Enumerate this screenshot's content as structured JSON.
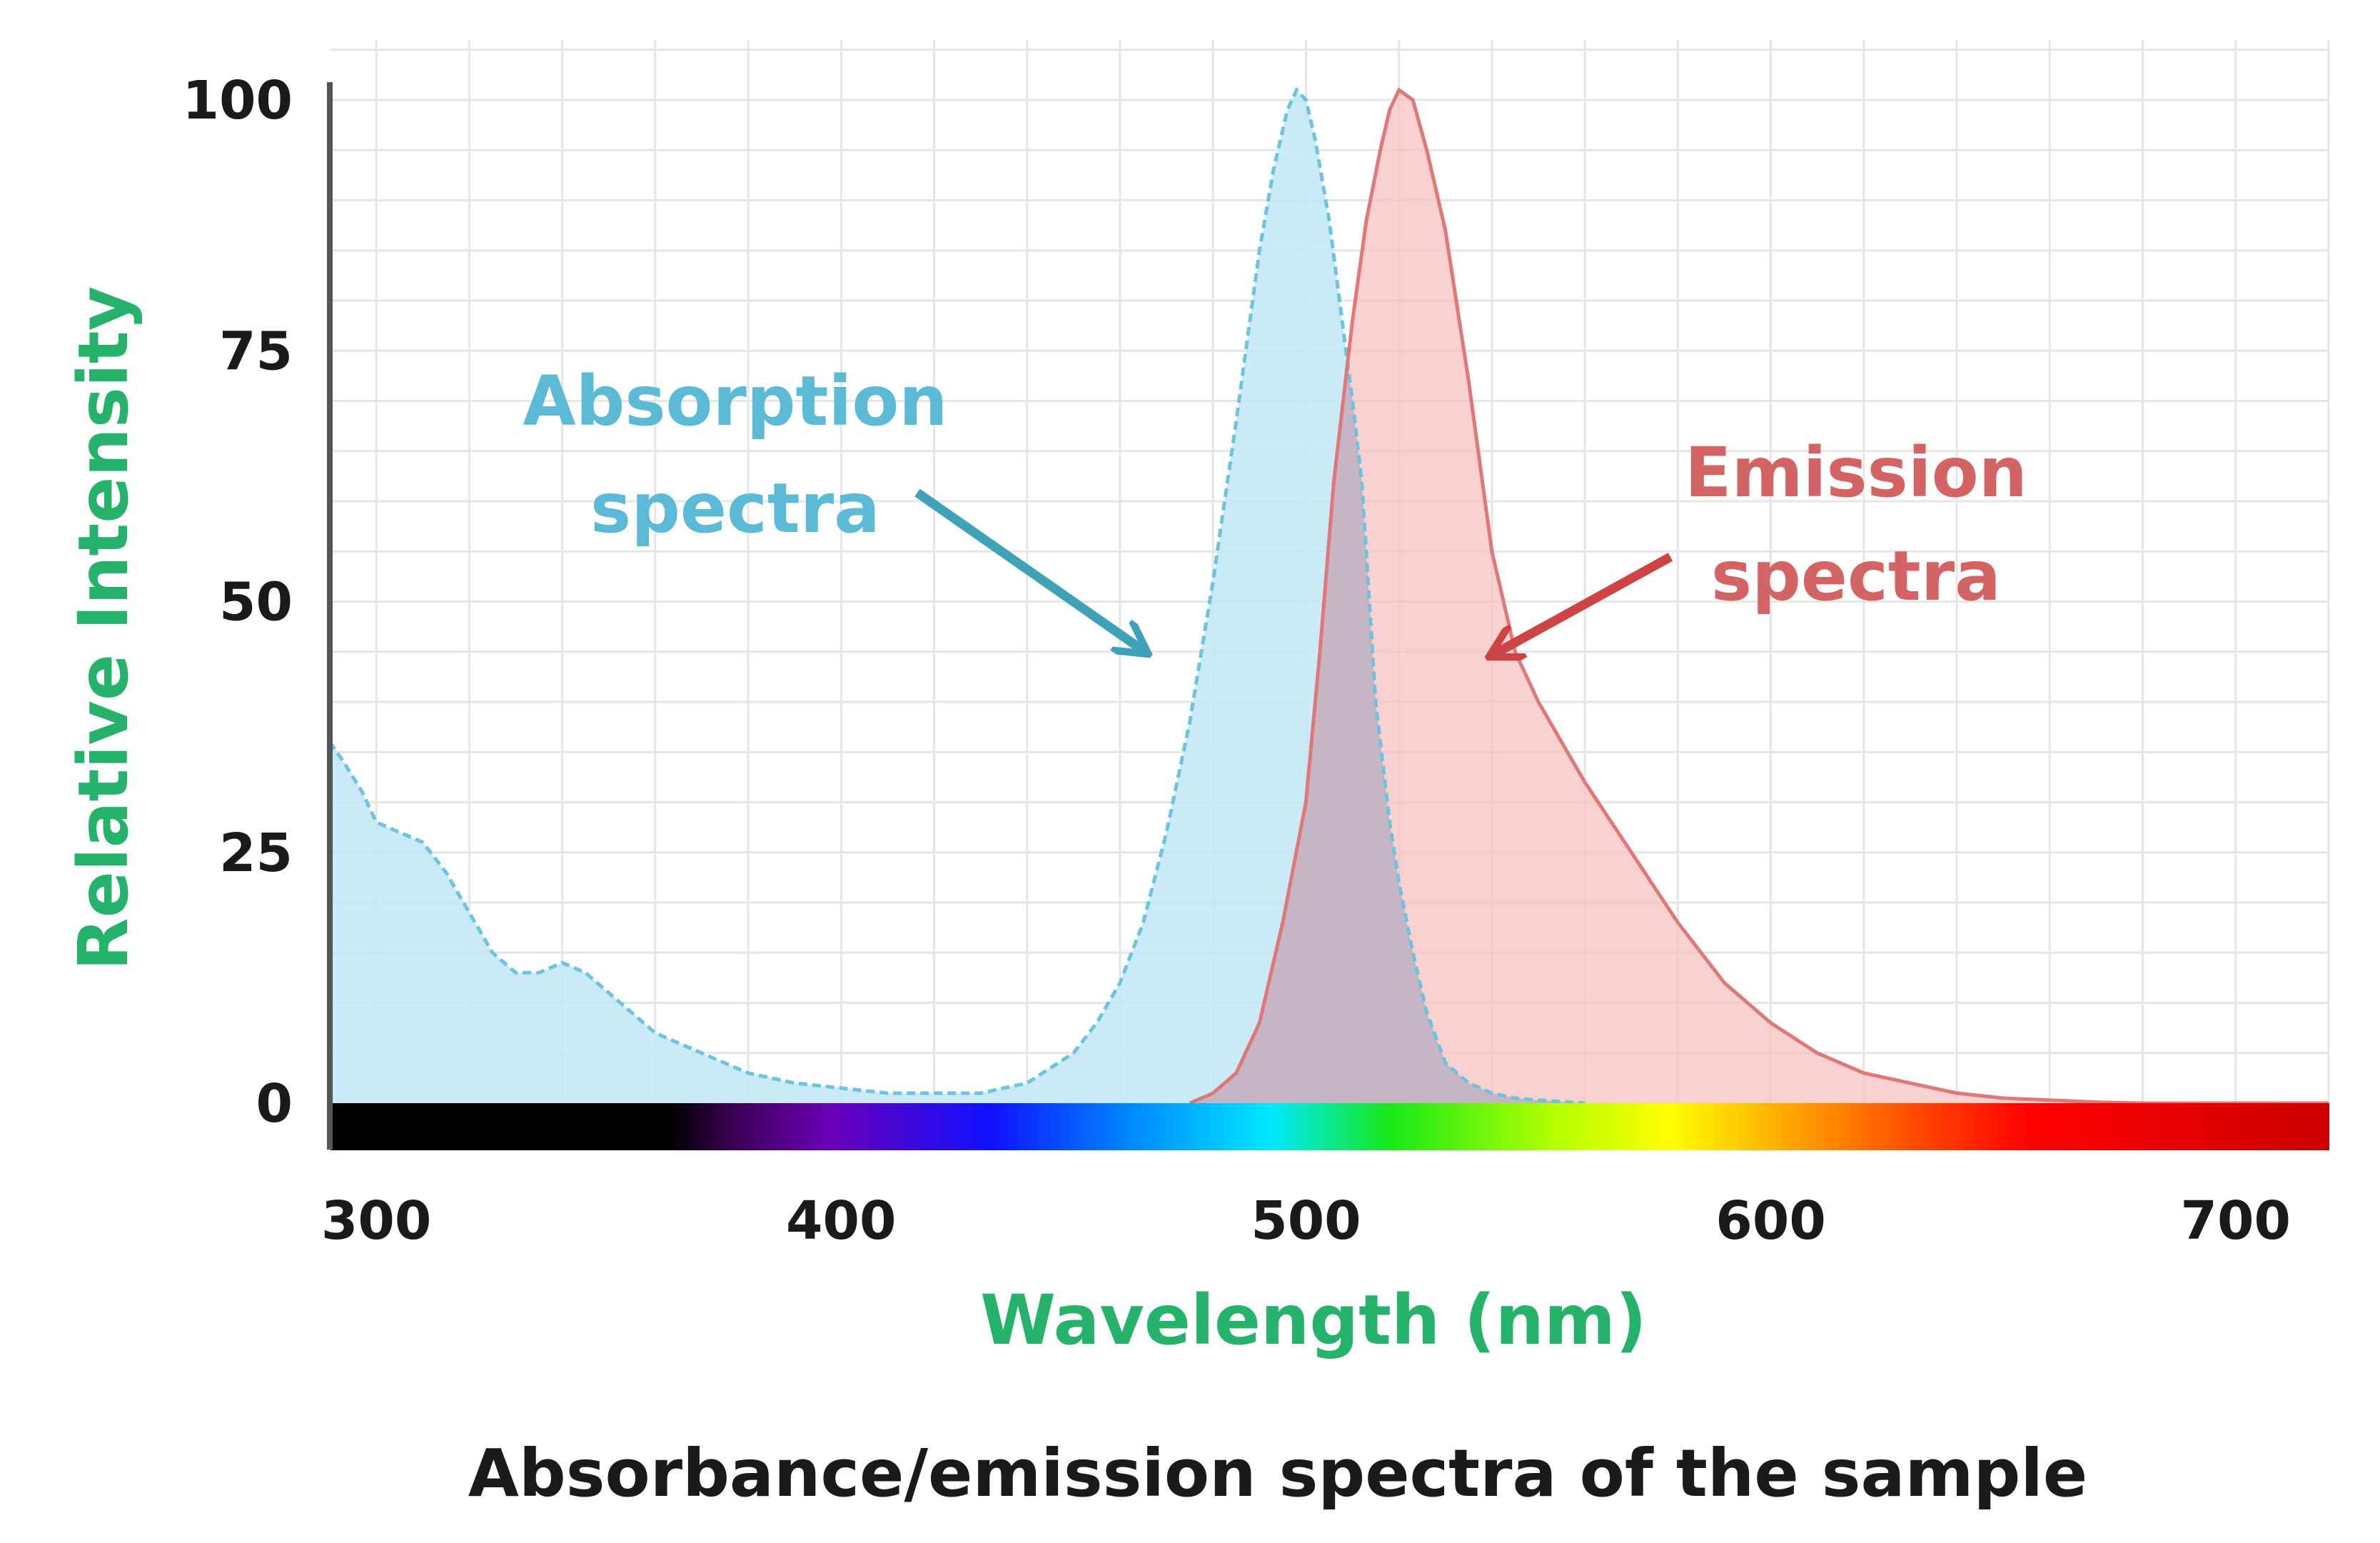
{
  "chart_data": {
    "type": "area",
    "title": "Absorbance/emission spectra of the sample",
    "xlabel": "Wavelength (nm)",
    "ylabel": "Relative Intensity",
    "xlim": [
      290,
      720
    ],
    "ylim": [
      0,
      100
    ],
    "x_ticks": [
      300,
      400,
      500,
      600,
      700
    ],
    "y_ticks": [
      0,
      25,
      50,
      75,
      100
    ],
    "grid": true,
    "series": [
      {
        "name": "Absorption spectra",
        "label_lines": [
          "Absorption",
          "spectra"
        ],
        "color": "#4fb3cc",
        "fill": "#bfe6f5",
        "x": [
          290,
          293,
          297,
          300,
          305,
          310,
          315,
          320,
          325,
          330,
          335,
          340,
          345,
          350,
          355,
          360,
          370,
          380,
          390,
          400,
          410,
          420,
          430,
          440,
          450,
          455,
          460,
          465,
          470,
          475,
          480,
          485,
          490,
          493,
          496,
          498,
          500,
          502,
          505,
          510,
          512,
          515,
          518,
          520,
          523,
          526,
          530,
          535,
          540,
          545,
          550,
          560
        ],
        "values": [
          36,
          34,
          31,
          28,
          27,
          26,
          23,
          19,
          15,
          13,
          13,
          14,
          13,
          11,
          9,
          7,
          5,
          3,
          2,
          1.5,
          1,
          1,
          1,
          2,
          5,
          8,
          12,
          18,
          27,
          38,
          52,
          68,
          85,
          93,
          99,
          101,
          100,
          96,
          88,
          70,
          62,
          40,
          28,
          22,
          15,
          9,
          4,
          2,
          1,
          0.5,
          0.3,
          0
        ]
      },
      {
        "name": "Emission spectra",
        "label_lines": [
          "Emission",
          "spectra"
        ],
        "color": "#e06a6a",
        "fill": "#f7c2c0",
        "x": [
          475,
          480,
          485,
          490,
          495,
          500,
          503,
          506,
          510,
          513,
          516,
          518,
          520,
          523,
          526,
          530,
          535,
          540,
          545,
          550,
          560,
          570,
          580,
          590,
          600,
          610,
          620,
          630,
          640,
          650,
          660,
          670,
          680,
          700,
          720
        ],
        "values": [
          0,
          1,
          3,
          8,
          18,
          30,
          45,
          62,
          78,
          88,
          95,
          99,
          101,
          100,
          95,
          87,
          72,
          55,
          45,
          40,
          32,
          25,
          18,
          12,
          8,
          5,
          3,
          2,
          1,
          0.5,
          0.3,
          0.1,
          0,
          0,
          0
        ]
      }
    ],
    "annotations": [
      "Absorption spectra",
      "Emission spectra"
    ]
  }
}
